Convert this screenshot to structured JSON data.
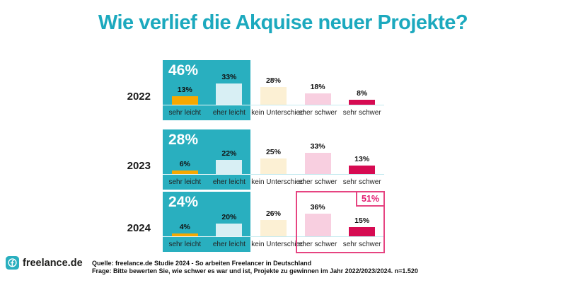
{
  "title": "Wie verlief die Akquise neuer Projekte?",
  "categories": [
    "sehr leicht",
    "eher leicht",
    "kein Unterschied",
    "eher schwer",
    "sehr schwer"
  ],
  "rows": [
    {
      "year": "2022",
      "group_left_label": "46%",
      "bar_labels": [
        "13%",
        "33%",
        "28%",
        "18%",
        "8%"
      ]
    },
    {
      "year": "2023",
      "group_left_label": "28%",
      "bar_labels": [
        "6%",
        "22%",
        "25%",
        "33%",
        "13%"
      ]
    },
    {
      "year": "2024",
      "group_left_label": "24%",
      "group_right_label": "51%",
      "bar_labels": [
        "4%",
        "20%",
        "26%",
        "36%",
        "15%"
      ]
    }
  ],
  "footer": {
    "logo_text": "freelance.de",
    "source_line_1": "Quelle: freelance.de Studie 2024 - So arbeiten Freelancer in Deutschland",
    "source_line_2": "Frage: Bitte bewerten Sie, wie schwer es war und ist, Projekte zu gewinnen im Jahr 2022/2023/2024. n=1.520"
  },
  "colors": {
    "brand_teal": "#29AFBF",
    "title_teal": "#1CA9BE",
    "bar_sehr_leicht": "#F6A800",
    "bar_eher_leicht": "#D8EFF4",
    "bar_kein_unterschied": "#FCF0D4",
    "bar_eher_schwer": "#F8CFE0",
    "bar_sehr_schwer": "#D60B52",
    "highlight_outline": "#E64481",
    "highlight_text": "#E2186E",
    "baseline": "#C5EAF0"
  },
  "chart_data": {
    "type": "bar",
    "title": "Wie verlief die Akquise neuer Projekte?",
    "unit": "%",
    "categories": [
      "sehr leicht",
      "eher leicht",
      "kein Unterschied",
      "eher schwer",
      "sehr schwer"
    ],
    "series": [
      {
        "name": "2022",
        "values": [
          13,
          33,
          28,
          18,
          8
        ]
      },
      {
        "name": "2023",
        "values": [
          6,
          22,
          25,
          33,
          13
        ]
      },
      {
        "name": "2024",
        "values": [
          4,
          20,
          26,
          36,
          15
        ]
      }
    ],
    "annotations": [
      {
        "target": "2022 sehr leicht + eher leicht",
        "label": "46%"
      },
      {
        "target": "2023 sehr leicht + eher leicht",
        "label": "28%"
      },
      {
        "target": "2024 sehr leicht + eher leicht",
        "label": "24%"
      },
      {
        "target": "2024 eher schwer + sehr schwer",
        "label": "51%"
      }
    ],
    "ylim": [
      0,
      50
    ],
    "grid": false,
    "legend": false,
    "layout": "small multiples, one bar row per year, category labels under each bar"
  }
}
